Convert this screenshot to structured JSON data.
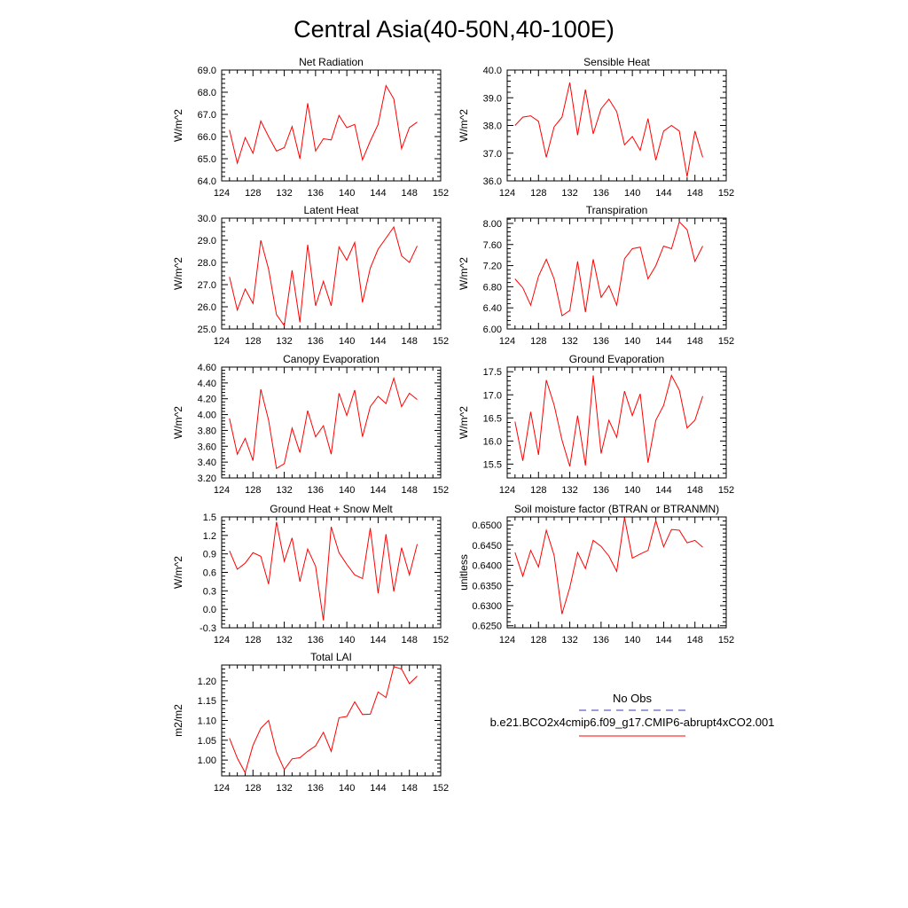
{
  "figure_title": "Central Asia(40-50N,40-100E)",
  "legend": {
    "obs_label": "No Obs",
    "obs_color": "#3b3bb8",
    "model_label": "b.e21.BCO2x4cmip6.f09_g17.CMIP6-abrupt4xCO2.001",
    "model_color": "#ff0000"
  },
  "chart_data": [
    {
      "type": "line",
      "title": "Net Radiation",
      "ylabel": "W/m^2",
      "xlim": [
        124,
        152
      ],
      "xticks": [
        124,
        128,
        132,
        136,
        140,
        144,
        148,
        152
      ],
      "ylim": [
        64.0,
        69.0
      ],
      "yticks": [
        "64.0",
        "65.0",
        "66.0",
        "67.0",
        "68.0",
        "69.0"
      ],
      "x": [
        125,
        126,
        127,
        128,
        129,
        130,
        131,
        132,
        133,
        134,
        135,
        136,
        137,
        138,
        139,
        140,
        141,
        142,
        143,
        144,
        145,
        146,
        147,
        148,
        149
      ],
      "series": [
        {
          "name": "b.e21.BCO2x4cmip6.f09_g17.CMIP6-abrupt4xCO2.001",
          "values": [
            66.3,
            64.8,
            65.95,
            65.25,
            66.7,
            66.0,
            65.35,
            65.5,
            66.45,
            65.0,
            67.5,
            65.35,
            65.9,
            65.85,
            66.95,
            66.4,
            66.55,
            64.95,
            65.8,
            66.55,
            68.3,
            67.7,
            65.45,
            66.4,
            66.65
          ]
        }
      ]
    },
    {
      "type": "line",
      "title": "Sensible Heat",
      "ylabel": "W/m^2",
      "xlim": [
        124,
        152
      ],
      "xticks": [
        124,
        128,
        132,
        136,
        140,
        144,
        148,
        152
      ],
      "ylim": [
        36.0,
        40.0
      ],
      "yticks": [
        "36.0",
        "37.0",
        "38.0",
        "39.0",
        "40.0"
      ],
      "x": [
        125,
        126,
        127,
        128,
        129,
        130,
        131,
        132,
        133,
        134,
        135,
        136,
        137,
        138,
        139,
        140,
        141,
        142,
        143,
        144,
        145,
        146,
        147,
        148,
        149
      ],
      "series": [
        {
          "name": "b.e21.BCO2x4cmip6.f09_g17.CMIP6-abrupt4xCO2.001",
          "values": [
            38.0,
            38.3,
            38.35,
            38.15,
            36.85,
            37.95,
            38.3,
            39.55,
            37.65,
            39.3,
            37.7,
            38.6,
            38.95,
            38.5,
            37.3,
            37.6,
            37.1,
            38.25,
            36.75,
            37.8,
            38.0,
            37.8,
            36.15,
            37.8,
            36.85
          ]
        }
      ]
    },
    {
      "type": "line",
      "title": "Latent Heat",
      "ylabel": "W/m^2",
      "xlim": [
        124,
        152
      ],
      "xticks": [
        124,
        128,
        132,
        136,
        140,
        144,
        148,
        152
      ],
      "ylim": [
        25.0,
        30.0
      ],
      "yticks": [
        "25.0",
        "26.0",
        "27.0",
        "28.0",
        "29.0",
        "30.0"
      ],
      "x": [
        125,
        126,
        127,
        128,
        129,
        130,
        131,
        132,
        133,
        134,
        135,
        136,
        137,
        138,
        139,
        140,
        141,
        142,
        143,
        144,
        145,
        146,
        147,
        148,
        149
      ],
      "series": [
        {
          "name": "b.e21.BCO2x4cmip6.f09_g17.CMIP6-abrupt4xCO2.001",
          "values": [
            27.35,
            25.85,
            26.8,
            26.15,
            29.0,
            27.7,
            25.65,
            25.15,
            27.65,
            25.3,
            28.8,
            26.05,
            27.15,
            26.05,
            28.7,
            28.1,
            28.9,
            26.2,
            27.75,
            28.6,
            29.1,
            29.6,
            28.3,
            28.0,
            28.75
          ]
        }
      ]
    },
    {
      "type": "line",
      "title": "Transpiration",
      "ylabel": "W/m^2",
      "xlim": [
        124,
        152
      ],
      "xticks": [
        124,
        128,
        132,
        136,
        140,
        144,
        148,
        152
      ],
      "ylim": [
        6.0,
        8.1
      ],
      "yticks": [
        "6.00",
        "6.40",
        "6.80",
        "7.20",
        "7.60",
        "8.00"
      ],
      "x": [
        125,
        126,
        127,
        128,
        129,
        130,
        131,
        132,
        133,
        134,
        135,
        136,
        137,
        138,
        139,
        140,
        141,
        142,
        143,
        144,
        145,
        146,
        147,
        148,
        149
      ],
      "series": [
        {
          "name": "b.e21.BCO2x4cmip6.f09_g17.CMIP6-abrupt4xCO2.001",
          "values": [
            6.95,
            6.78,
            6.45,
            7.0,
            7.32,
            6.95,
            6.25,
            6.35,
            7.28,
            6.32,
            7.32,
            6.6,
            6.82,
            6.45,
            7.33,
            7.52,
            7.55,
            6.95,
            7.2,
            7.57,
            7.52,
            8.03,
            7.88,
            7.28,
            7.57
          ]
        }
      ]
    },
    {
      "type": "line",
      "title": "Canopy Evaporation",
      "ylabel": "W/m^2",
      "xlim": [
        124,
        152
      ],
      "xticks": [
        124,
        128,
        132,
        136,
        140,
        144,
        148,
        152
      ],
      "ylim": [
        3.2,
        4.6
      ],
      "yticks": [
        "3.20",
        "3.40",
        "3.60",
        "3.80",
        "4.00",
        "4.20",
        "4.40",
        "4.60"
      ],
      "x": [
        125,
        126,
        127,
        128,
        129,
        130,
        131,
        132,
        133,
        134,
        135,
        136,
        137,
        138,
        139,
        140,
        141,
        142,
        143,
        144,
        145,
        146,
        147,
        148,
        149
      ],
      "series": [
        {
          "name": "b.e21.BCO2x4cmip6.f09_g17.CMIP6-abrupt4xCO2.001",
          "values": [
            3.95,
            3.5,
            3.7,
            3.42,
            4.32,
            3.93,
            3.32,
            3.38,
            3.83,
            3.52,
            4.05,
            3.72,
            3.86,
            3.5,
            4.27,
            3.99,
            4.31,
            3.72,
            4.1,
            4.23,
            4.14,
            4.46,
            4.1,
            4.27,
            4.19
          ]
        }
      ]
    },
    {
      "type": "line",
      "title": "Ground Evaporation",
      "ylabel": "W/m^2",
      "xlim": [
        124,
        152
      ],
      "xticks": [
        124,
        128,
        132,
        136,
        140,
        144,
        148,
        152
      ],
      "ylim": [
        15.2,
        17.6
      ],
      "yticks": [
        "15.5",
        "16.0",
        "16.5",
        "17.0",
        "17.5"
      ],
      "x": [
        125,
        126,
        127,
        128,
        129,
        130,
        131,
        132,
        133,
        134,
        135,
        136,
        137,
        138,
        139,
        140,
        141,
        142,
        143,
        144,
        145,
        146,
        147,
        148,
        149
      ],
      "series": [
        {
          "name": "b.e21.BCO2x4cmip6.f09_g17.CMIP6-abrupt4xCO2.001",
          "values": [
            16.42,
            15.57,
            16.63,
            15.7,
            17.32,
            16.78,
            16.02,
            15.45,
            16.55,
            15.47,
            17.42,
            15.73,
            16.45,
            16.08,
            17.08,
            16.55,
            17.02,
            15.53,
            16.45,
            16.77,
            17.42,
            17.1,
            16.28,
            16.45,
            16.97
          ]
        }
      ]
    },
    {
      "type": "line",
      "title": "Ground Heat + Snow Melt",
      "ylabel": "W/m^2",
      "xlim": [
        124,
        152
      ],
      "xticks": [
        124,
        128,
        132,
        136,
        140,
        144,
        148,
        152
      ],
      "ylim": [
        -0.3,
        1.5
      ],
      "yticks": [
        "-0.3",
        "0.0",
        "0.3",
        "0.6",
        "0.9",
        "1.2",
        "1.5"
      ],
      "x": [
        125,
        126,
        127,
        128,
        129,
        130,
        131,
        132,
        133,
        134,
        135,
        136,
        137,
        138,
        139,
        140,
        141,
        142,
        143,
        144,
        145,
        146,
        147,
        148,
        149
      ],
      "series": [
        {
          "name": "b.e21.BCO2x4cmip6.f09_g17.CMIP6-abrupt4xCO2.001",
          "values": [
            0.95,
            0.65,
            0.75,
            0.92,
            0.86,
            0.41,
            1.42,
            0.78,
            1.16,
            0.45,
            0.98,
            0.7,
            -0.18,
            1.34,
            0.92,
            0.73,
            0.56,
            0.5,
            1.32,
            0.26,
            1.22,
            0.29,
            1.0,
            0.56,
            1.06
          ]
        }
      ]
    },
    {
      "type": "line",
      "title": "Soil moisture factor (BTRAN or BTRANMN)",
      "ylabel": "unitless",
      "xlim": [
        124,
        152
      ],
      "xticks": [
        124,
        128,
        132,
        136,
        140,
        144,
        148,
        152
      ],
      "ylim": [
        0.6245,
        0.652
      ],
      "yticks": [
        "0.6250",
        "0.6300",
        "0.6350",
        "0.6400",
        "0.6450",
        "0.6500"
      ],
      "x": [
        125,
        126,
        127,
        128,
        129,
        130,
        131,
        132,
        133,
        134,
        135,
        136,
        137,
        138,
        139,
        140,
        141,
        142,
        143,
        144,
        145,
        146,
        147,
        148,
        149
      ],
      "series": [
        {
          "name": "b.e21.BCO2x4cmip6.f09_g17.CMIP6-abrupt4xCO2.001",
          "values": [
            0.6432,
            0.6373,
            0.6437,
            0.6396,
            0.6487,
            0.6425,
            0.6279,
            0.6345,
            0.6432,
            0.6392,
            0.6462,
            0.6447,
            0.6423,
            0.6385,
            0.6518,
            0.6418,
            0.6428,
            0.6437,
            0.6511,
            0.6446,
            0.6489,
            0.6487,
            0.6456,
            0.6462,
            0.6445
          ]
        }
      ]
    },
    {
      "type": "line",
      "title": "Total LAI",
      "ylabel": "m2/m2",
      "xlim": [
        124,
        152
      ],
      "xticks": [
        124,
        128,
        132,
        136,
        140,
        144,
        148,
        152
      ],
      "ylim": [
        0.96,
        1.24
      ],
      "yticks": [
        "1.00",
        "1.05",
        "1.10",
        "1.15",
        "1.20"
      ],
      "x": [
        125,
        126,
        127,
        128,
        129,
        130,
        131,
        132,
        133,
        134,
        135,
        136,
        137,
        138,
        139,
        140,
        141,
        142,
        143,
        144,
        145,
        146,
        147,
        148,
        149
      ],
      "series": [
        {
          "name": "b.e21.BCO2x4cmip6.f09_g17.CMIP6-abrupt4xCO2.001",
          "values": [
            1.055,
            1.005,
            0.968,
            1.037,
            1.08,
            1.1,
            1.02,
            0.976,
            1.003,
            1.006,
            1.022,
            1.036,
            1.07,
            1.022,
            1.107,
            1.11,
            1.147,
            1.115,
            1.116,
            1.172,
            1.158,
            1.236,
            1.23,
            1.193,
            1.212
          ]
        }
      ]
    }
  ]
}
